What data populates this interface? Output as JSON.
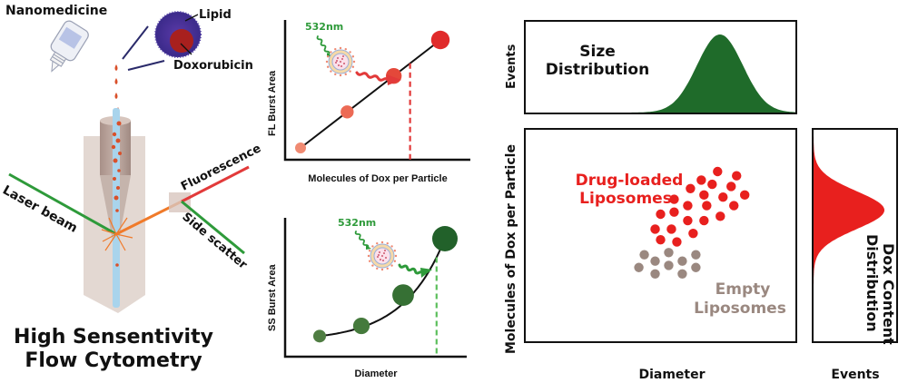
{
  "left_panel": {
    "nanomedicine_label": "Nanomedicine",
    "lipid_label": "Lipid",
    "doxorubicin_label": "Doxorubicin",
    "laser_label": "Laser beam",
    "fluorescence_label": "Fluorescence",
    "side_scatter_label": "Side scatter",
    "title_line1": "High Sensentivity",
    "title_line2": "Flow Cytometry",
    "colors": {
      "laser": "#2e9a3a",
      "fluorescence": "#e23a3a",
      "emission": "#f07a2a",
      "particle": "#d9502a",
      "stream": "#a9d4ec"
    }
  },
  "chart_data": [
    {
      "type": "line",
      "id": "fl-burst",
      "xlabel": "Molecules of Dox per Particle",
      "ylabel": "FL Burst Area",
      "excitation_label": "532nm",
      "x": [
        1,
        2,
        3,
        4
      ],
      "y": [
        1,
        2,
        3,
        4
      ],
      "marker_relative_size": [
        1,
        1.2,
        1.45,
        1.7
      ],
      "marker_colors": [
        "#f08a72",
        "#ec6a55",
        "#e4483a",
        "#e02a2a"
      ],
      "measurement_x": 3.35,
      "line_color": "#111111",
      "dashed_color": "#e23a3a"
    },
    {
      "type": "line",
      "id": "ss-burst",
      "xlabel": "Diameter",
      "ylabel": "SS Burst Area",
      "excitation_label": "532nm",
      "x": [
        1,
        2,
        3,
        4
      ],
      "y": [
        0.05,
        0.15,
        0.45,
        1.0
      ],
      "marker_relative_size": [
        1,
        1.3,
        1.7,
        2.0
      ],
      "marker_colors": [
        "#4f7d42",
        "#457a3c",
        "#367034",
        "#22612a"
      ],
      "measurement_x": 3.8,
      "line_color": "#111111",
      "dashed_color": "#5cbf5c"
    },
    {
      "type": "area",
      "id": "size-distribution",
      "title": "Size Distribution",
      "title_line1": "Size",
      "title_line2": "Distribution",
      "ylabel": "Events",
      "distribution": "gaussian",
      "mean": 0.72,
      "sd": 0.085,
      "color": "#1f6b2a"
    },
    {
      "type": "scatter",
      "id": "dox-vs-diameter",
      "xlabel": "Diameter",
      "ylabel": "Molecules of Dox per Particle",
      "series": [
        {
          "name": "Drug-loaded Liposomes",
          "label_line1": "Drug-loaded",
          "label_line2": "Liposomes",
          "color": "#e8201e",
          "points": [
            [
              0.71,
              0.8
            ],
            [
              0.78,
              0.78
            ],
            [
              0.65,
              0.76
            ],
            [
              0.69,
              0.74
            ],
            [
              0.76,
              0.73
            ],
            [
              0.61,
              0.72
            ],
            [
              0.66,
              0.69
            ],
            [
              0.73,
              0.68
            ],
            [
              0.81,
              0.69
            ],
            [
              0.55,
              0.67
            ],
            [
              0.77,
              0.64
            ],
            [
              0.6,
              0.64
            ],
            [
              0.67,
              0.64
            ],
            [
              0.5,
              0.6
            ],
            [
              0.55,
              0.61
            ],
            [
              0.6,
              0.57
            ],
            [
              0.66,
              0.57
            ],
            [
              0.72,
              0.59
            ],
            [
              0.48,
              0.53
            ],
            [
              0.54,
              0.53
            ],
            [
              0.62,
              0.51
            ],
            [
              0.5,
              0.48
            ],
            [
              0.56,
              0.47
            ]
          ]
        },
        {
          "name": "Empty Liposomes",
          "label_line1": "Empty",
          "label_line2": "Liposomes",
          "color": "#9a8880",
          "points": [
            [
              0.44,
              0.41
            ],
            [
              0.53,
              0.42
            ],
            [
              0.63,
              0.41
            ],
            [
              0.48,
              0.38
            ],
            [
              0.58,
              0.38
            ],
            [
              0.42,
              0.35
            ],
            [
              0.53,
              0.36
            ],
            [
              0.63,
              0.35
            ],
            [
              0.48,
              0.32
            ],
            [
              0.58,
              0.32
            ]
          ]
        }
      ]
    },
    {
      "type": "area",
      "id": "dox-content-distribution",
      "title": "Dox Content Distribution",
      "title_line1": "Dox Content",
      "title_line2": "Distribution",
      "xlabel": "Events",
      "distribution": "gaussian",
      "orientation": "horizontal",
      "mean": 0.62,
      "sd": 0.09,
      "color": "#e8201e"
    }
  ]
}
